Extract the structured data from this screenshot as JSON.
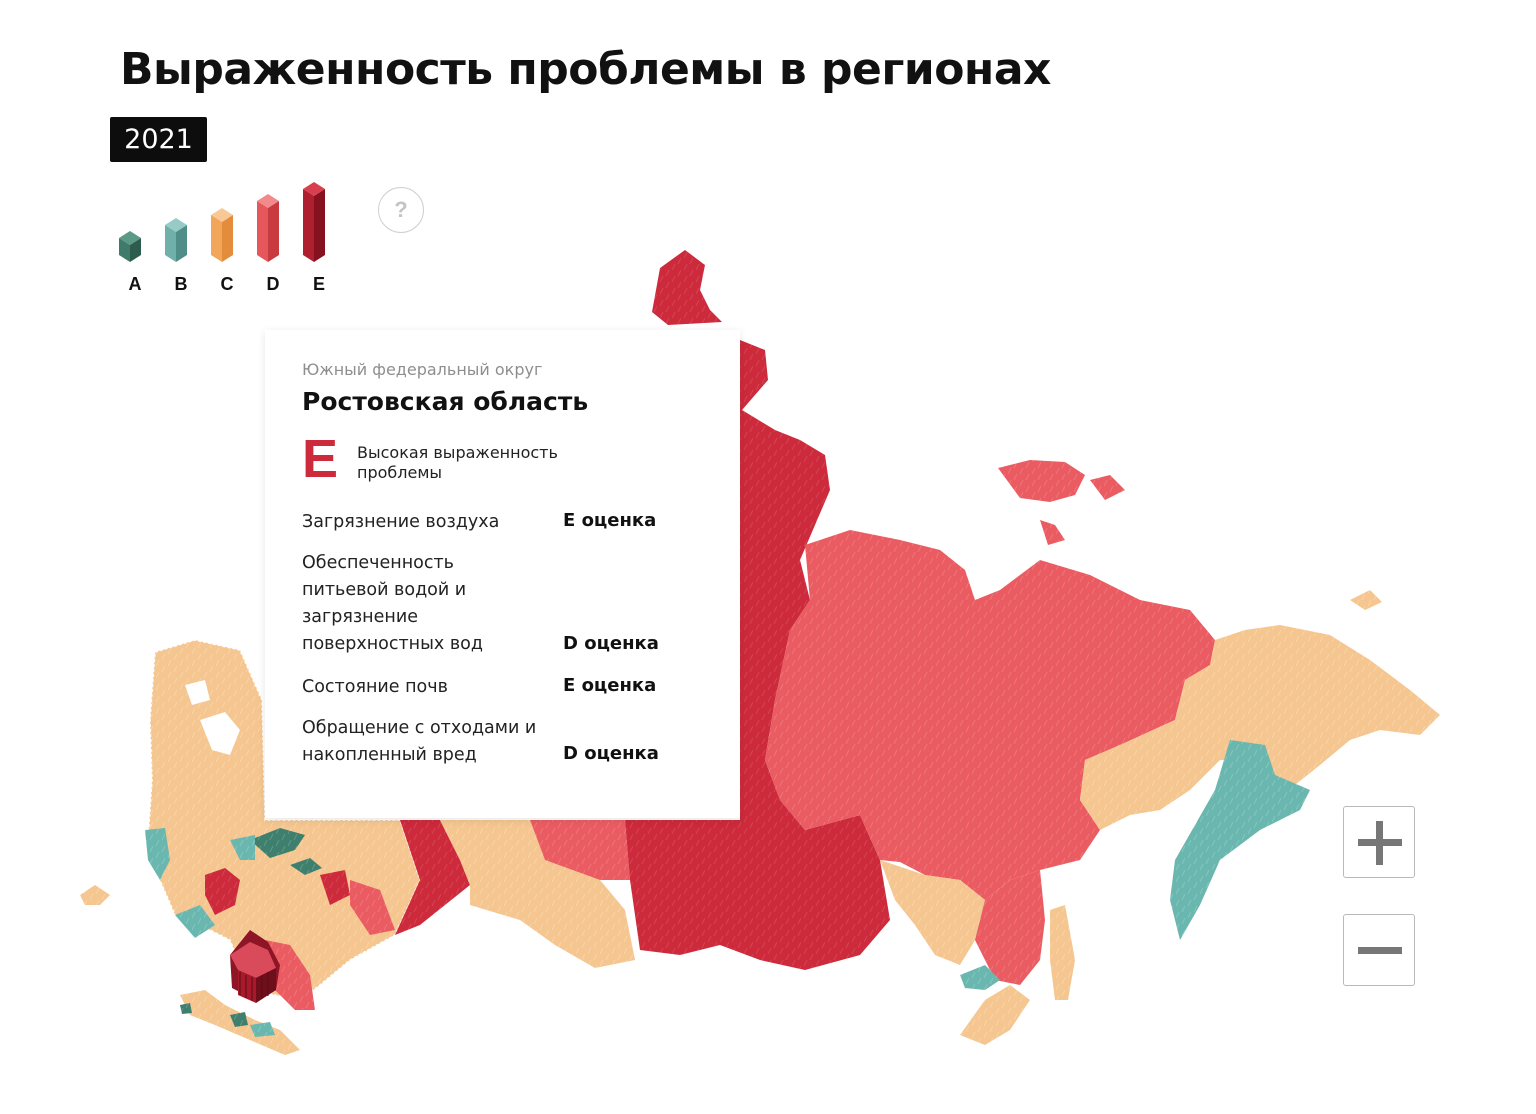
{
  "title": "Выраженность проблемы в регионах",
  "year": "2021",
  "legend": {
    "items": [
      {
        "label": "A",
        "color": "#3f7b6a"
      },
      {
        "label": "B",
        "color": "#6fb0ab"
      },
      {
        "label": "C",
        "color": "#f2a65a"
      },
      {
        "label": "D",
        "color": "#e6575b"
      },
      {
        "label": "E",
        "color": "#b01f30"
      }
    ],
    "help_symbol": "?"
  },
  "map": {
    "colors": {
      "A": "#3e7f6d",
      "B": "#6ab7b0",
      "C": "#f5c68f",
      "D": "#ea5c62",
      "E": "#cd2a3c"
    },
    "highlighted_region": "Ростовская область"
  },
  "tooltip": {
    "district": "Южный федеральный округ",
    "region": "Ростовская область",
    "grade": "E",
    "grade_description": "Высокая выраженность проблемы",
    "rows": [
      {
        "label": "Загрязнение воздуха",
        "score": "E оценка"
      },
      {
        "label": "Обеспеченность питьевой водой и загрязнение поверхностных вод",
        "score": "D оценка"
      },
      {
        "label": "Состояние почв",
        "score": "E оценка"
      },
      {
        "label": "Обращение с отходами и накопленный вред",
        "score": "D оценка"
      }
    ]
  },
  "zoom": {
    "in_icon": "plus-icon",
    "out_icon": "minus-icon"
  }
}
